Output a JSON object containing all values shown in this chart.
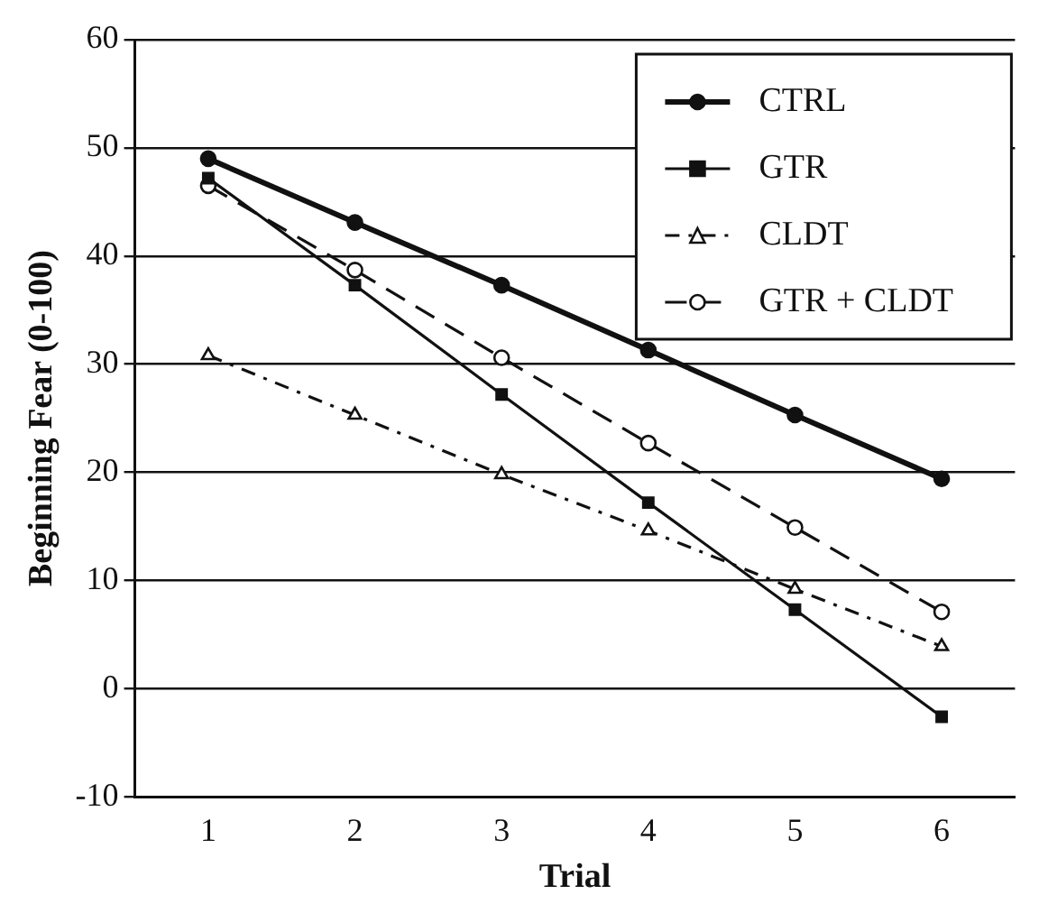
{
  "chart_data": {
    "type": "line",
    "xlabel": "Trial",
    "ylabel": "Beginning Fear (0-100)",
    "categories": [
      "1",
      "2",
      "3",
      "4",
      "5",
      "6"
    ],
    "series": [
      {
        "name": "CTRL",
        "color": "#111111",
        "values": [
          49,
          43.1,
          37.3,
          31.3,
          25.3,
          19.4
        ],
        "marker": "circle",
        "line_style": "solid"
      },
      {
        "name": "GTR",
        "color": "#111111",
        "values": [
          47.2,
          37.3,
          27.2,
          17.2,
          7.3,
          -2.6
        ],
        "marker": "square",
        "line_style": "solid"
      },
      {
        "name": "CLDT",
        "color": "#111111",
        "values": [
          30.8,
          25.3,
          19.8,
          14.6,
          9.2,
          3.9
        ],
        "marker": "triangle",
        "line_style": "dashdot"
      },
      {
        "name": "GTR + CLDT",
        "color": "#111111",
        "values": [
          46.5,
          38.7,
          30.6,
          22.7,
          14.9,
          7.1
        ],
        "marker": "circle",
        "line_style": "dashed"
      }
    ],
    "ylim": [
      -10,
      60
    ],
    "yticks": [
      -10,
      0,
      10,
      20,
      30,
      40,
      50,
      60
    ],
    "grid": "y",
    "legend": "top right"
  }
}
